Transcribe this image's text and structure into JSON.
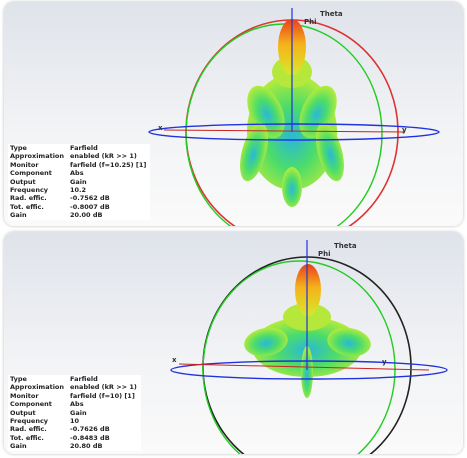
{
  "panels": [
    {
      "axis_labels": {
        "theta": "Theta",
        "phi": "Phi",
        "x": "x",
        "y": "y"
      },
      "info": [
        {
          "label": "Type",
          "value": "Farfield"
        },
        {
          "label": "Approximation",
          "value": "enabled (kR >> 1)"
        },
        {
          "label": "Monitor",
          "value": "farfield (f=10.25) [1]"
        },
        {
          "label": "Component",
          "value": "Abs"
        },
        {
          "label": "Output",
          "value": "Gain"
        },
        {
          "label": "Frequency",
          "value": "10.2"
        },
        {
          "label": "Rad. effic.",
          "value": "-0.7562 dB"
        },
        {
          "label": "Tot. effic.",
          "value": "-0.8007 dB"
        },
        {
          "label": "Gain",
          "value": "20.00 dB"
        }
      ]
    },
    {
      "axis_labels": {
        "theta": "Theta",
        "phi": "Phi",
        "x": "x",
        "y": "y"
      },
      "info": [
        {
          "label": "Type",
          "value": "Farfield"
        },
        {
          "label": "Approximation",
          "value": "enabled (kR >> 1)"
        },
        {
          "label": "Monitor",
          "value": "farfield (f=10) [1]"
        },
        {
          "label": "Component",
          "value": "Abs"
        },
        {
          "label": "Output",
          "value": "Gain"
        },
        {
          "label": "Frequency",
          "value": "10"
        },
        {
          "label": "Rad. effic.",
          "value": "-0.7626 dB"
        },
        {
          "label": "Tot. effic.",
          "value": "-0.8483 dB"
        },
        {
          "label": "Gain",
          "value": "20.80 dB"
        }
      ]
    }
  ]
}
